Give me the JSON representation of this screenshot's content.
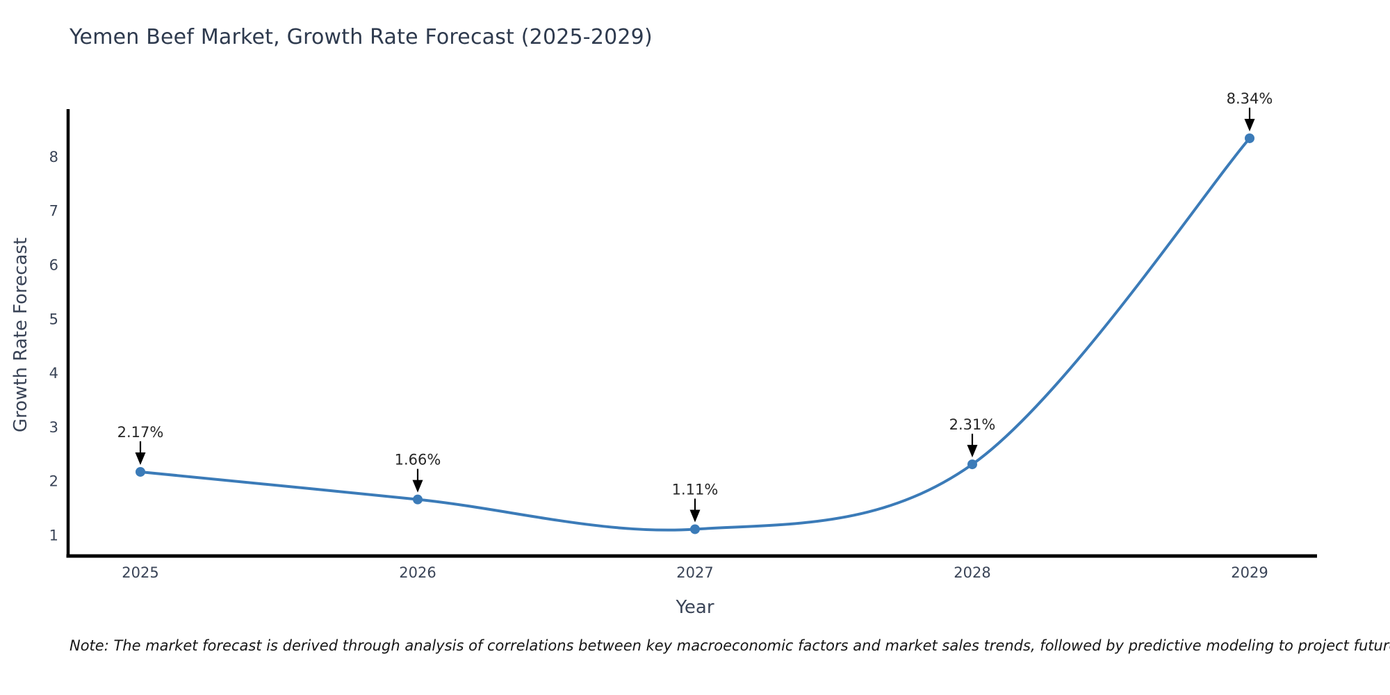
{
  "title": "Yemen Beef Market, Growth Rate Forecast (2025-2029)",
  "footnote": "Note: The market forecast is derived through analysis of correlations between key macroeconomic factors and market sales trends, followed by predictive modeling to project future sales.",
  "colors": {
    "line": "#3b7bb8",
    "marker": "#3b7bb8",
    "axis": "#000000",
    "annotation_arrow": "#000000",
    "annotation_text": "#262626",
    "tick_text": "#3a4457",
    "title_text": "#2e3a4e"
  },
  "chart_data": {
    "type": "line",
    "title": "Yemen Beef Market, Growth Rate Forecast (2025-2029)",
    "xlabel": "Year",
    "ylabel": "Growth Rate Forecast",
    "categories": [
      "2025",
      "2026",
      "2027",
      "2028",
      "2029"
    ],
    "values": [
      2.17,
      1.66,
      1.11,
      2.31,
      8.34
    ],
    "point_labels": [
      "2.17%",
      "1.66%",
      "1.11%",
      "2.31%",
      "8.34%"
    ],
    "yticks": [
      1,
      2,
      3,
      4,
      5,
      6,
      7,
      8
    ],
    "ylim": [
      0.7,
      9.0
    ],
    "grid": false,
    "legend": false,
    "line_smoothing": "spline",
    "marker": "circle",
    "annotation_style": "value above point with downward arrow"
  }
}
